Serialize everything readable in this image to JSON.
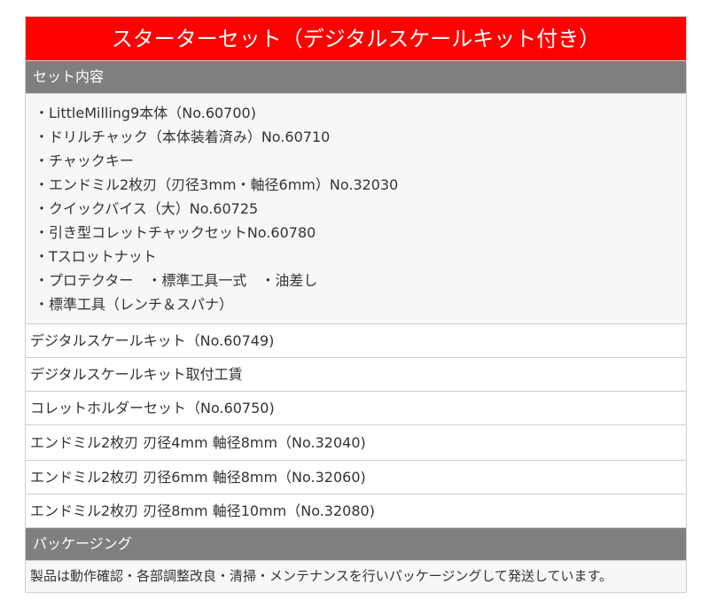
{
  "title": "スターターセット（デジタルスケールキット付き）",
  "contents_header": "セット内容",
  "contents_lines": [
    "・LittleMilling9本体（No.60700)",
    "・ドリルチャック（本体装着済み）No.60710",
    "・チャックキー",
    "・エンドミル2枚刃（刃径3mm・軸径6mm）No.32030",
    "・クイックバイス（大）No.60725",
    "・引き型コレットチャックセットNo.60780",
    "・Tスロットナット",
    "・プロテクター　・標準工具一式　・油差し",
    "・標準工具（レンチ＆スパナ）"
  ],
  "rows": [
    "デジタルスケールキット（No.60749)",
    "デジタルスケールキット取付工賃",
    "コレットホルダーセット（No.60750)",
    "エンドミル2枚刃 刃径4mm 軸径8mm（No.32040)",
    "エンドミル2枚刃 刃径6mm 軸径8mm（No.32060)",
    "エンドミル2枚刃 刃径8mm 軸径10mm（No.32080)"
  ],
  "packaging_header": "パッケージング",
  "packaging_note": "製品は動作確認・各部調整改良・清掃・メンテナンスを行いパッケージングして発送しています。",
  "colors": {
    "title_bg": "#ff0000",
    "section_bg": "#7f7f7f",
    "border": "#cfcfcf"
  }
}
